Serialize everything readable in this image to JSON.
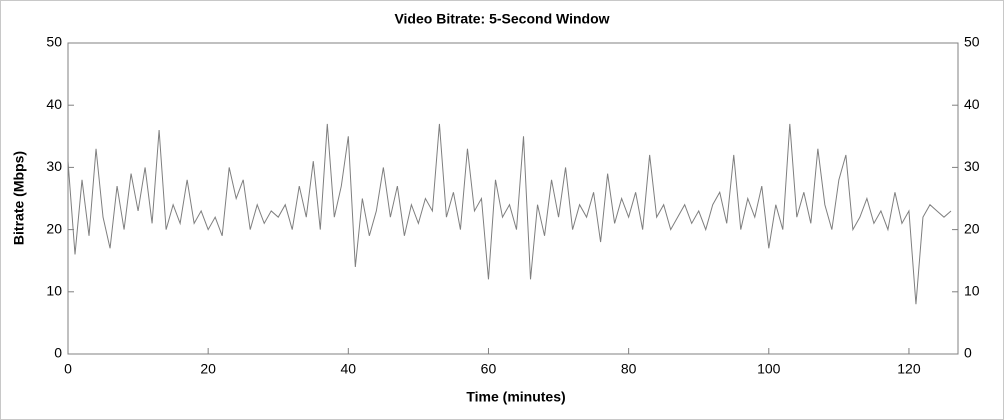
{
  "chart_data": {
    "type": "line",
    "title": "Video Bitrate: 5-Second Window",
    "x_label": "Time (minutes)",
    "y_label": "Bitrate (Mbps)",
    "x": [
      0,
      1,
      2,
      3,
      4,
      5,
      6,
      7,
      8,
      9,
      10,
      11,
      12,
      13,
      14,
      15,
      16,
      17,
      18,
      19,
      20,
      21,
      22,
      23,
      24,
      25,
      26,
      27,
      28,
      29,
      30,
      31,
      32,
      33,
      34,
      35,
      36,
      37,
      38,
      39,
      40,
      41,
      42,
      43,
      44,
      45,
      46,
      47,
      48,
      49,
      50,
      51,
      52,
      53,
      54,
      55,
      56,
      57,
      58,
      59,
      60,
      61,
      62,
      63,
      64,
      65,
      66,
      67,
      68,
      69,
      70,
      71,
      72,
      73,
      74,
      75,
      76,
      77,
      78,
      79,
      80,
      81,
      82,
      83,
      84,
      85,
      86,
      87,
      88,
      89,
      90,
      91,
      92,
      93,
      94,
      95,
      96,
      97,
      98,
      99,
      100,
      101,
      102,
      103,
      104,
      105,
      106,
      107,
      108,
      109,
      110,
      111,
      112,
      113,
      114,
      115,
      116,
      117,
      118,
      119,
      120,
      121,
      122,
      123,
      124,
      125,
      126
    ],
    "series": [
      {
        "name": "Video Bitrate",
        "color": "#7f7f7f",
        "values": [
          31,
          16,
          28,
          19,
          33,
          22,
          17,
          27,
          20,
          29,
          23,
          30,
          21,
          36,
          20,
          24,
          21,
          28,
          21,
          23,
          20,
          22,
          19,
          30,
          25,
          28,
          20,
          24,
          21,
          23,
          22,
          24,
          20,
          27,
          22,
          31,
          20,
          37,
          22,
          27,
          35,
          14,
          25,
          19,
          23,
          30,
          22,
          27,
          19,
          24,
          21,
          25,
          23,
          37,
          22,
          26,
          20,
          33,
          23,
          25,
          12,
          28,
          22,
          24,
          20,
          35,
          12,
          24,
          19,
          28,
          22,
          30,
          20,
          24,
          22,
          26,
          18,
          29,
          21,
          25,
          22,
          26,
          20,
          32,
          22,
          24,
          20,
          22,
          24,
          21,
          23,
          20,
          24,
          26,
          21,
          32,
          20,
          25,
          22,
          27,
          17,
          24,
          20,
          37,
          22,
          26,
          21,
          33,
          24,
          20,
          28,
          32,
          20,
          22,
          25,
          21,
          23,
          20,
          26,
          21,
          23,
          8,
          22,
          24,
          23,
          22,
          23
        ]
      }
    ],
    "xlim": [
      0,
      127
    ],
    "xticks": [
      0,
      20,
      40,
      60,
      80,
      100,
      120
    ],
    "ylim": [
      0,
      50
    ],
    "yticks": [
      0,
      10,
      20,
      30,
      40,
      50
    ],
    "y2lim": [
      0,
      50
    ],
    "y2ticks": [
      0,
      10,
      20,
      30,
      40,
      50
    ]
  }
}
